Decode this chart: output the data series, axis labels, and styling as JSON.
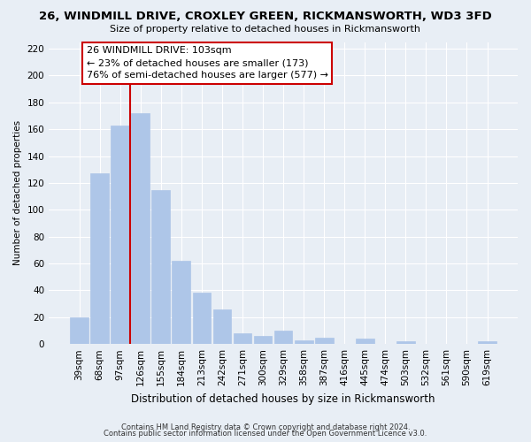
{
  "title": "26, WINDMILL DRIVE, CROXLEY GREEN, RICKMANSWORTH, WD3 3FD",
  "subtitle": "Size of property relative to detached houses in Rickmansworth",
  "xlabel": "Distribution of detached houses by size in Rickmansworth",
  "ylabel": "Number of detached properties",
  "bar_labels": [
    "39sqm",
    "68sqm",
    "97sqm",
    "126sqm",
    "155sqm",
    "184sqm",
    "213sqm",
    "242sqm",
    "271sqm",
    "300sqm",
    "329sqm",
    "358sqm",
    "387sqm",
    "416sqm",
    "445sqm",
    "474sqm",
    "503sqm",
    "532sqm",
    "561sqm",
    "590sqm",
    "619sqm"
  ],
  "bar_values": [
    20,
    127,
    163,
    172,
    115,
    62,
    38,
    26,
    8,
    6,
    10,
    3,
    5,
    0,
    4,
    0,
    2,
    0,
    0,
    0,
    2
  ],
  "bar_color": "#aec6e8",
  "bar_edge_color": "#aec6e8",
  "vline_x": 2.5,
  "vline_color": "#cc0000",
  "ylim": [
    0,
    225
  ],
  "yticks": [
    0,
    20,
    40,
    60,
    80,
    100,
    120,
    140,
    160,
    180,
    200,
    220
  ],
  "annotation_title": "26 WINDMILL DRIVE: 103sqm",
  "annotation_line1": "← 23% of detached houses are smaller (173)",
  "annotation_line2": "76% of semi-detached houses are larger (577) →",
  "footer1": "Contains HM Land Registry data © Crown copyright and database right 2024.",
  "footer2": "Contains public sector information licensed under the Open Government Licence v3.0.",
  "background_color": "#e8eef5",
  "plot_background": "#e8eef5",
  "grid_color": "#ffffff",
  "title_fontsize": 9.5,
  "subtitle_fontsize": 8,
  "xlabel_fontsize": 8.5,
  "ylabel_fontsize": 7.5,
  "tick_fontsize": 7.5,
  "annotation_fontsize": 8,
  "footer_fontsize": 6
}
